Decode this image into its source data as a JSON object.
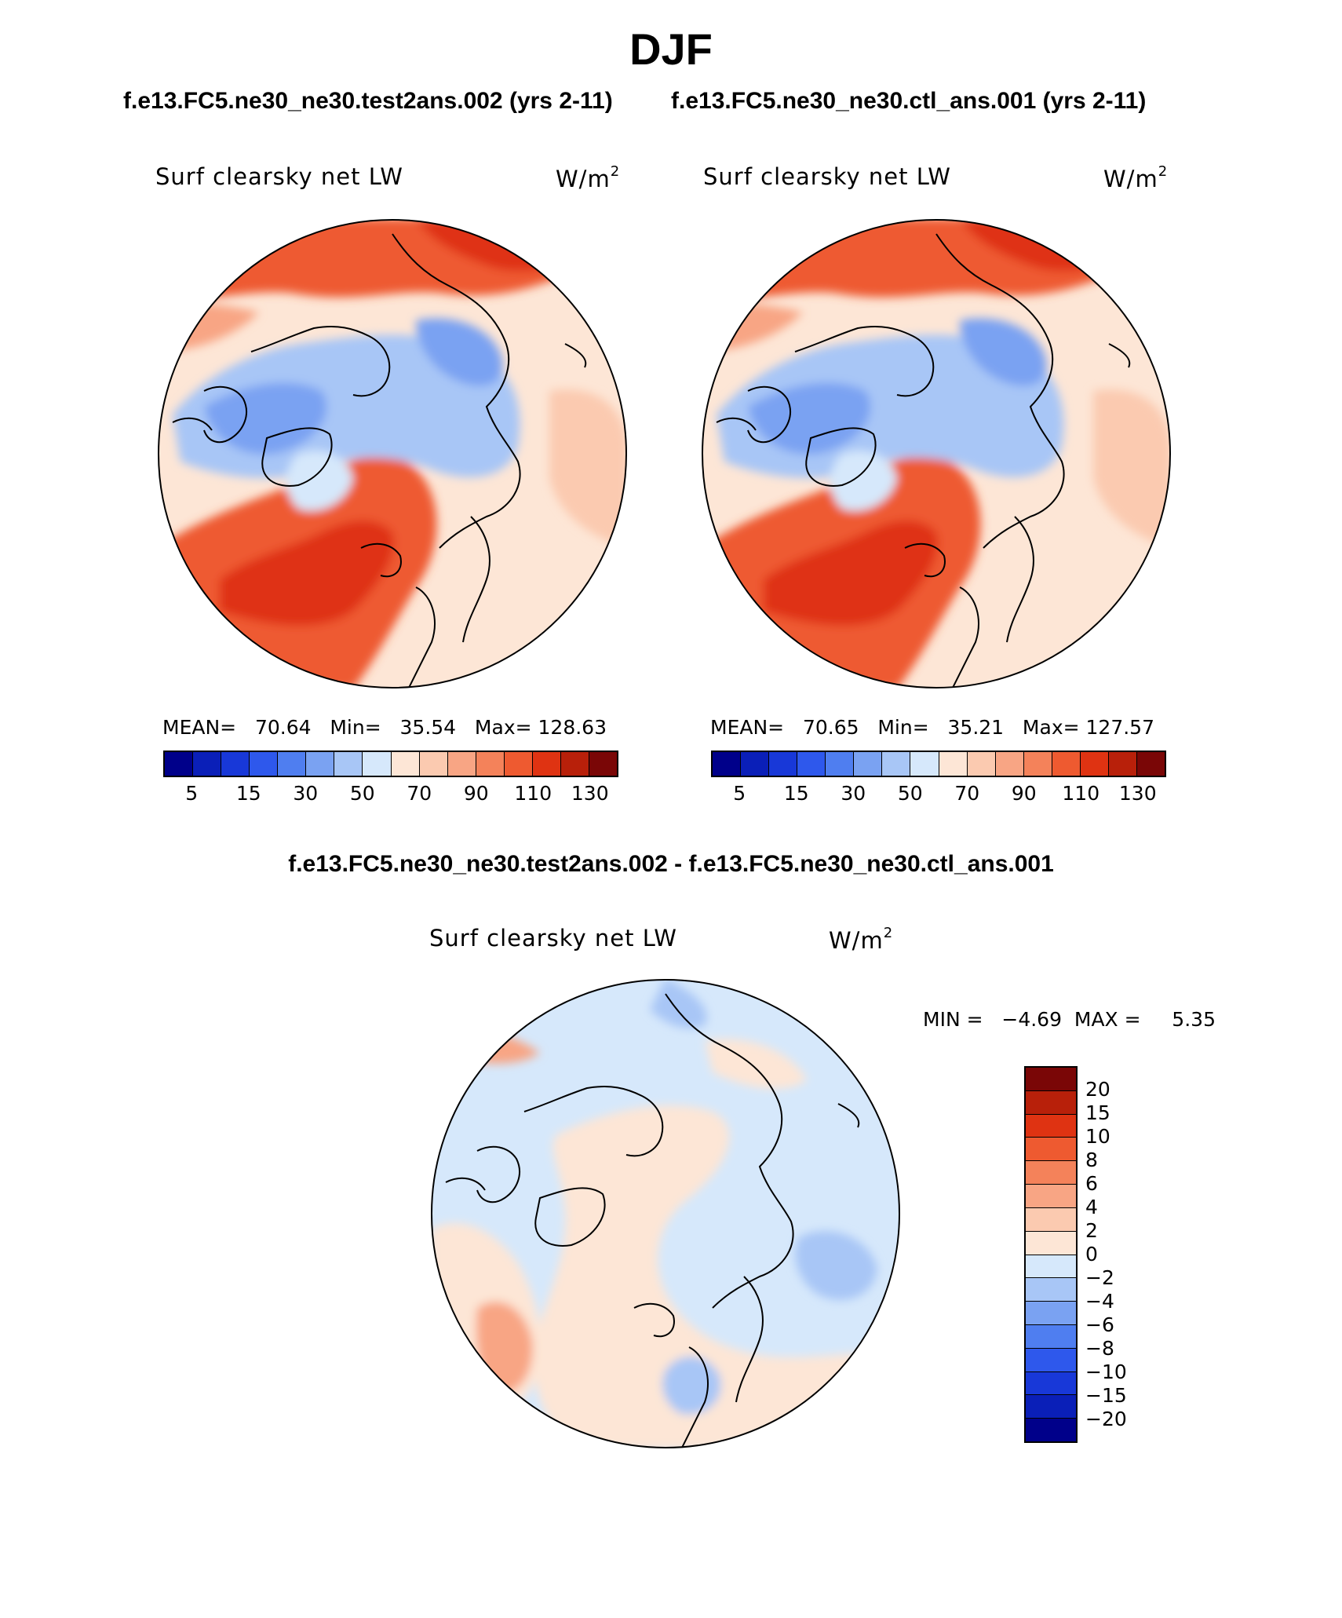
{
  "title": "DJF",
  "panels": [
    {
      "case_name": "f.e13.FC5.ne30_ne30.test2ans.002 (yrs 2-11)",
      "variable": "Surf clearsky net LW",
      "units": "W/m",
      "units_exp": "2",
      "stats": "MEAN=   70.64   Min=   35.54   Max= 128.63",
      "map_kind": "field"
    },
    {
      "case_name": "f.e13.FC5.ne30_ne30.ctl_ans.001 (yrs 2-11)",
      "variable": "Surf clearsky net LW",
      "units": "W/m",
      "units_exp": "2",
      "stats": "MEAN=   70.65   Min=   35.21   Max= 127.57",
      "map_kind": "field"
    }
  ],
  "diff_panel": {
    "title": "f.e13.FC5.ne30_ne30.test2ans.002 - f.e13.FC5.ne30_ne30.ctl_ans.001",
    "variable": "Surf clearsky net LW",
    "units": "W/m",
    "units_exp": "2",
    "stats": "MIN =   −4.69  MAX =     5.35"
  },
  "colorbar_field": {
    "colors": [
      "#00008a",
      "#0a1fb8",
      "#1838d8",
      "#2e58ec",
      "#4f7ef0",
      "#7aa2f2",
      "#a8c6f6",
      "#d6e8fb",
      "#fde6d6",
      "#fbcab0",
      "#f8a584",
      "#f4825a",
      "#ee5a30",
      "#df3312",
      "#b8200a",
      "#7a0606"
    ],
    "tick_labels": [
      "5",
      "15",
      "30",
      "50",
      "70",
      "90",
      "110",
      "130"
    ]
  },
  "colorbar_diff": {
    "colors": [
      "#7a0606",
      "#b8200a",
      "#df3312",
      "#ee5a30",
      "#f4825a",
      "#f8a584",
      "#fbcab0",
      "#fde6d6",
      "#d6e8fb",
      "#a8c6f6",
      "#7aa2f2",
      "#4f7ef0",
      "#2e58ec",
      "#1838d8",
      "#0a1fb8",
      "#00008a"
    ],
    "tick_labels": [
      "20",
      "15",
      "10",
      "8",
      "6",
      "4",
      "2",
      "0",
      "−2",
      "−4",
      "−6",
      "−8",
      "−10",
      "−15",
      "−20"
    ]
  }
}
